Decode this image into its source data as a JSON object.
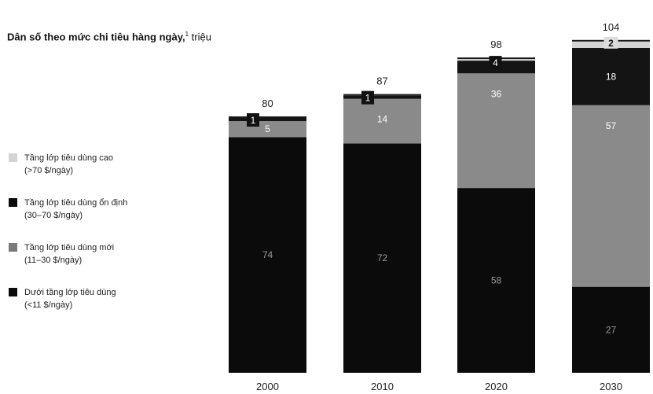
{
  "chart_data": {
    "type": "bar",
    "stacked": true,
    "title": "Dân số theo mức chi tiêu hàng ngày,",
    "title_superscript": "1",
    "title_unit": "triệu",
    "categories": [
      "2000",
      "2010",
      "2020",
      "2030"
    ],
    "totals": [
      80,
      87,
      98,
      104
    ],
    "series": [
      {
        "name": "Dưới tầng lớp tiêu dùng",
        "name_sub": "(<11 $/ngày)",
        "color": "#0b0b0b",
        "values": [
          74,
          72,
          58,
          27
        ],
        "value_labels": [
          "74",
          "72",
          "58",
          "27"
        ]
      },
      {
        "name": "Tầng lớp tiêu dùng mới",
        "name_sub": "(11–30 $/ngày)",
        "color": "#8a8a8a",
        "values": [
          5,
          14,
          36,
          57
        ],
        "value_labels": [
          "5",
          "14",
          "36",
          "57"
        ]
      },
      {
        "name": "Tầng lớp tiêu dùng ổn định",
        "name_sub": "(30–70 $/ngày)",
        "color": "#141414",
        "values": [
          1,
          1,
          4,
          18
        ],
        "value_labels": [
          "1",
          "1",
          "4",
          "18"
        ]
      },
      {
        "name": "Tầng lớp tiêu dùng cao",
        "name_sub": "(>70 $/ngày)",
        "color": "#d4d4d4",
        "values": [
          0,
          0,
          0.5,
          2
        ],
        "value_labels": [
          "",
          "",
          "",
          "2"
        ]
      }
    ],
    "legend_position": "left",
    "grid": false
  }
}
